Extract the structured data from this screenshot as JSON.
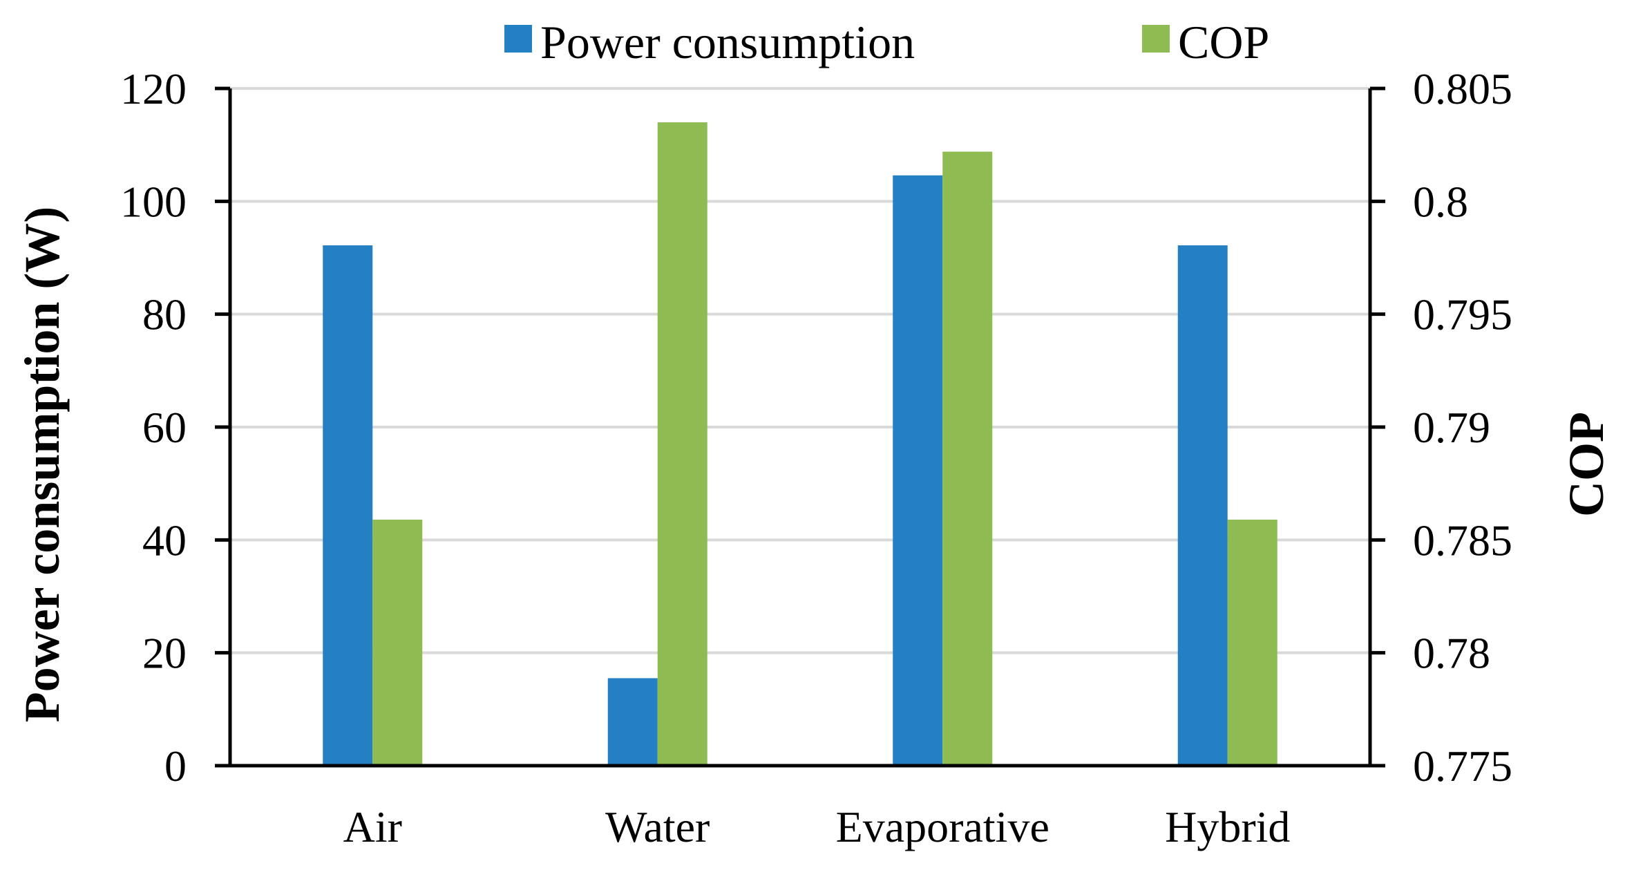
{
  "chart_data": {
    "type": "bar",
    "title": "",
    "categories": [
      "Air",
      "Water",
      "Evaporative",
      "Hybrid"
    ],
    "series": [
      {
        "name": "Power consumption",
        "axis": "left",
        "color": "#2580C3",
        "values": [
          92.2,
          15.5,
          104.6,
          92.2
        ]
      },
      {
        "name": "COP",
        "axis": "right",
        "color": "#8FBC52",
        "values": [
          0.7859,
          0.8035,
          0.8022,
          0.7859
        ]
      }
    ],
    "ylabel": "Power consumption (W)",
    "ylim": [
      0,
      120
    ],
    "yticks": [
      0,
      20,
      40,
      60,
      80,
      100,
      120
    ],
    "ytick_labels": [
      "0",
      "20",
      "40",
      "60",
      "80",
      "100",
      "120"
    ],
    "y2label": "COP",
    "y2lim": [
      0.775,
      0.805
    ],
    "y2ticks": [
      0.775,
      0.78,
      0.785,
      0.79,
      0.795,
      0.8,
      0.805
    ],
    "y2tick_labels": [
      "0.775",
      "0.78",
      "0.785",
      "0.79",
      "0.795",
      "0.8",
      "0.805"
    ],
    "xlabel": "",
    "grid": true,
    "legend": "top-center"
  }
}
